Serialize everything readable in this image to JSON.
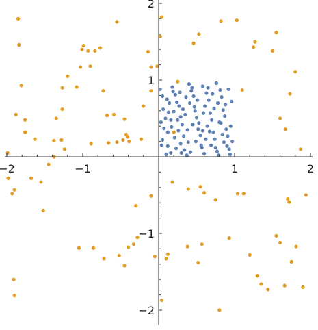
{
  "chart_data": {
    "type": "scatter",
    "title": "",
    "xlabel": "",
    "ylabel": "",
    "xlim": [
      -2.0,
      2.0
    ],
    "ylim": [
      -2.12,
      2.0
    ],
    "grid": false,
    "legend": "none",
    "x_ticks": [
      {
        "value": -2,
        "label": "−2"
      },
      {
        "value": -1,
        "label": "−1"
      },
      {
        "value": 1,
        "label": "1"
      },
      {
        "value": 2,
        "label": "2"
      }
    ],
    "y_ticks": [
      {
        "value": -2,
        "label": "−2"
      },
      {
        "value": -1,
        "label": "−1"
      },
      {
        "value": 1,
        "label": "1"
      },
      {
        "value": 2,
        "label": "2"
      }
    ],
    "series": [
      {
        "color": "#E19C24",
        "points": [
          [
            -1.85,
            1.8
          ],
          [
            -1.84,
            1.46
          ],
          [
            -1.81,
            0.93
          ],
          [
            -1.88,
            0.55
          ],
          [
            -1.76,
            0.32
          ],
          [
            -1.76,
            0.48
          ],
          [
            -1.63,
            0.23
          ],
          [
            -1.38,
            0.21
          ],
          [
            -1.35,
            0.5
          ],
          [
            -1.28,
            0.22
          ],
          [
            -1.27,
            0.62
          ],
          [
            -1.27,
            0.9
          ],
          [
            -1.2,
            1.05
          ],
          [
            -1.08,
            0.91
          ],
          [
            -1.03,
            1.17
          ],
          [
            -1.01,
            1.4
          ],
          [
            -0.99,
            1.45
          ],
          [
            -0.93,
            1.38
          ],
          [
            -0.9,
            1.18
          ],
          [
            -0.84,
            1.38
          ],
          [
            -0.77,
            1.42
          ],
          [
            -0.73,
            0.86
          ],
          [
            -0.68,
            0.54
          ],
          [
            -0.59,
            0.55
          ],
          [
            -0.55,
            1.76
          ],
          [
            -0.45,
            0.49
          ],
          [
            -0.41,
            0.26
          ],
          [
            -0.39,
            0.2
          ],
          [
            -0.14,
            1.37
          ],
          [
            -0.1,
            1.17
          ],
          [
            -0.02,
            1.18
          ],
          [
            0.02,
            1.57
          ],
          [
            0.04,
            1.82
          ],
          [
            -0.1,
            0.86
          ],
          [
            -0.2,
            0.66
          ],
          [
            -0.23,
            0.23
          ],
          [
            -0.43,
            0.29
          ],
          [
            -0.47,
            0.22
          ],
          [
            -0.55,
            0.19
          ],
          [
            -0.66,
            0.18
          ],
          [
            -0.89,
            0.17
          ],
          [
            -1.24,
            0.1
          ],
          [
            -1.38,
            0.0
          ],
          [
            -1.45,
            -0.1
          ],
          [
            -1.55,
            -0.33
          ],
          [
            -1.9,
            -0.43
          ],
          [
            -1.93,
            -0.48
          ],
          [
            -1.98,
            -0.28
          ],
          [
            -1.99,
            0.05
          ],
          [
            -1.91,
            -1.6
          ],
          [
            -1.9,
            -1.81
          ],
          [
            -1.68,
            -0.28
          ],
          [
            -1.52,
            -0.7
          ],
          [
            -1.05,
            -1.19
          ],
          [
            -0.86,
            -1.19
          ],
          [
            -0.72,
            -1.33
          ],
          [
            -0.52,
            -1.29
          ],
          [
            -0.45,
            -1.42
          ],
          [
            -0.4,
            -1.18
          ],
          [
            -0.33,
            -1.14
          ],
          [
            -0.3,
            -0.64
          ],
          [
            -0.28,
            -1.05
          ],
          [
            -0.1,
            -0.51
          ],
          [
            -0.05,
            -1.3
          ],
          [
            0.04,
            -1.87
          ],
          [
            0.1,
            -1.33
          ],
          [
            0.12,
            -1.27
          ],
          [
            0.38,
            -1.17
          ],
          [
            0.52,
            -1.38
          ],
          [
            0.57,
            -1.14
          ],
          [
            0.6,
            -0.47
          ],
          [
            0.75,
            -0.56
          ],
          [
            0.8,
            -2.0
          ],
          [
            0.93,
            -1.06
          ],
          [
            1.04,
            -0.48
          ],
          [
            1.12,
            -0.48
          ],
          [
            1.2,
            -1.28
          ],
          [
            1.3,
            -1.55
          ],
          [
            1.35,
            -1.66
          ],
          [
            1.44,
            -1.73
          ],
          [
            1.55,
            -1.03
          ],
          [
            1.6,
            -1.12
          ],
          [
            1.66,
            -1.68
          ],
          [
            1.7,
            -0.55
          ],
          [
            1.72,
            -0.59
          ],
          [
            1.75,
            -1.37
          ],
          [
            1.81,
            -1.17
          ],
          [
            1.9,
            -1.7
          ],
          [
            1.94,
            -0.5
          ],
          [
            1.6,
            0.5
          ],
          [
            1.67,
            0.36
          ],
          [
            1.73,
            0.82
          ],
          [
            1.8,
            1.11
          ],
          [
            1.87,
            0.1
          ],
          [
            1.5,
            1.38
          ],
          [
            1.55,
            1.62
          ],
          [
            1.25,
            1.43
          ],
          [
            1.27,
            1.5
          ],
          [
            1.1,
            0.87
          ],
          [
            1.03,
            1.78
          ],
          [
            0.82,
            1.77
          ],
          [
            0.53,
            1.6
          ],
          [
            0.46,
            1.48
          ],
          [
            0.25,
            0.98
          ],
          [
            0.2,
            0.32
          ],
          [
            0.55,
            -0.39
          ],
          [
            0.18,
            -0.33
          ],
          [
            0.39,
            -0.42
          ]
        ]
      },
      {
        "color": "#5E81B5",
        "points": [
          [
            0.02,
            0.88
          ],
          [
            0.05,
            0.79
          ],
          [
            0.06,
            0.62
          ],
          [
            0.09,
            0.5
          ],
          [
            0.12,
            0.32
          ],
          [
            0.05,
            0.22
          ],
          [
            0.12,
            0.14
          ],
          [
            0.16,
            0.05
          ],
          [
            0.1,
            0.03
          ],
          [
            0.18,
            0.91
          ],
          [
            0.22,
            0.81
          ],
          [
            0.24,
            0.71
          ],
          [
            0.27,
            0.66
          ],
          [
            0.2,
            0.59
          ],
          [
            0.29,
            0.52
          ],
          [
            0.31,
            0.42
          ],
          [
            0.26,
            0.34
          ],
          [
            0.33,
            0.27
          ],
          [
            0.29,
            0.17
          ],
          [
            0.34,
            0.09
          ],
          [
            0.37,
            0.02
          ],
          [
            0.4,
            0.95
          ],
          [
            0.43,
            0.86
          ],
          [
            0.46,
            0.79
          ],
          [
            0.41,
            0.7
          ],
          [
            0.48,
            0.6
          ],
          [
            0.5,
            0.51
          ],
          [
            0.45,
            0.42
          ],
          [
            0.52,
            0.36
          ],
          [
            0.55,
            0.28
          ],
          [
            0.49,
            0.2
          ],
          [
            0.57,
            0.12
          ],
          [
            0.6,
            0.04
          ],
          [
            0.58,
            0.92
          ],
          [
            0.63,
            0.83
          ],
          [
            0.66,
            0.74
          ],
          [
            0.61,
            0.66
          ],
          [
            0.68,
            0.57
          ],
          [
            0.7,
            0.48
          ],
          [
            0.64,
            0.4
          ],
          [
            0.72,
            0.32
          ],
          [
            0.74,
            0.23
          ],
          [
            0.69,
            0.15
          ],
          [
            0.77,
            0.07
          ],
          [
            0.79,
            0.02
          ],
          [
            0.76,
            0.96
          ],
          [
            0.81,
            0.87
          ],
          [
            0.83,
            0.78
          ],
          [
            0.78,
            0.7
          ],
          [
            0.85,
            0.61
          ],
          [
            0.87,
            0.53
          ],
          [
            0.82,
            0.44
          ],
          [
            0.89,
            0.36
          ],
          [
            0.91,
            0.27
          ],
          [
            0.86,
            0.19
          ],
          [
            0.93,
            0.1
          ],
          [
            0.94,
            0.03
          ],
          [
            0.92,
            0.88
          ],
          [
            0.96,
            0.72
          ],
          [
            0.95,
            0.4
          ],
          [
            0.97,
            0.2
          ],
          [
            0.03,
            0.45
          ],
          [
            0.07,
            0.37
          ],
          [
            0.14,
            0.7
          ],
          [
            0.16,
            0.48
          ],
          [
            0.21,
            0.25
          ],
          [
            0.23,
            0.11
          ],
          [
            0.28,
            0.84
          ],
          [
            0.32,
            0.62
          ],
          [
            0.35,
            0.55
          ],
          [
            0.38,
            0.35
          ],
          [
            0.39,
            0.19
          ],
          [
            0.42,
            0.06
          ],
          [
            0.44,
            0.9
          ],
          [
            0.47,
            0.65
          ],
          [
            0.51,
            0.74
          ],
          [
            0.53,
            0.44
          ],
          [
            0.56,
            0.15
          ],
          [
            0.59,
            0.57
          ],
          [
            0.62,
            0.23
          ],
          [
            0.65,
            0.9
          ],
          [
            0.67,
            0.33
          ],
          [
            0.71,
            0.82
          ],
          [
            0.73,
            0.63
          ],
          [
            0.75,
            0.12
          ],
          [
            0.8,
            0.45
          ],
          [
            0.84,
            0.29
          ],
          [
            0.88,
            0.68
          ],
          [
            0.9,
            0.14
          ],
          [
            0.04,
            0.15
          ],
          [
            0.11,
            0.75
          ],
          [
            0.13,
            0.58
          ],
          [
            0.17,
            0.39
          ],
          [
            0.19,
            0.85
          ],
          [
            0.25,
            0.48
          ],
          [
            0.3,
            0.05
          ],
          [
            0.36,
            0.78
          ],
          [
            0.58,
            0.34
          ]
        ]
      }
    ]
  }
}
